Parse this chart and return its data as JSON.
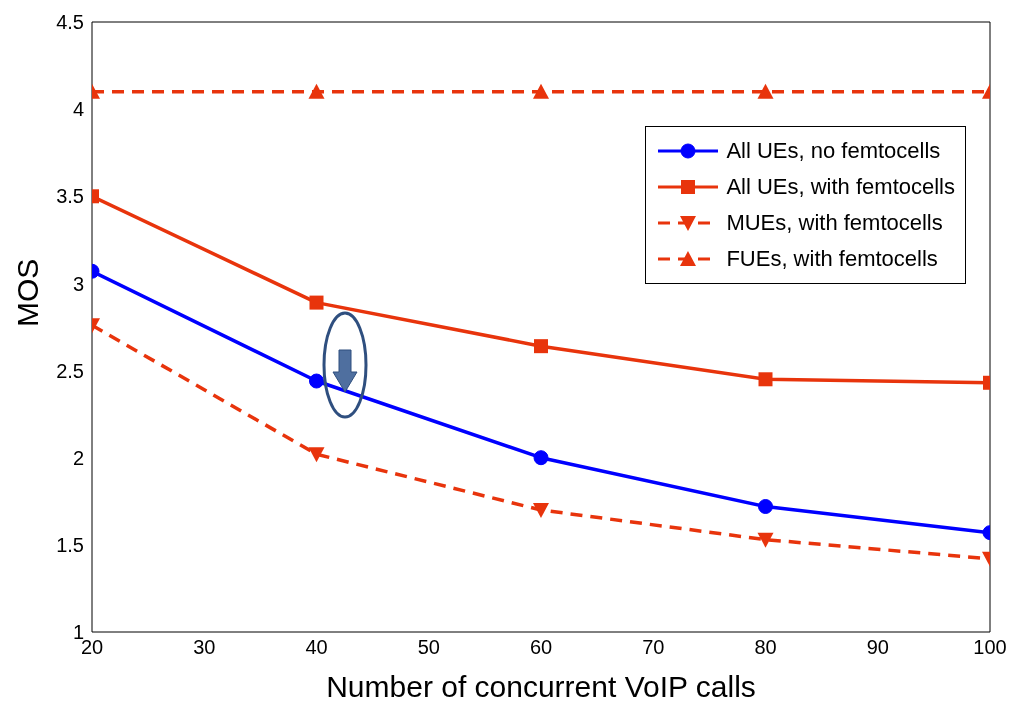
{
  "chart_data": {
    "type": "line",
    "xlabel": "Number of concurrent VoIP calls",
    "ylabel": "MOS",
    "x": [
      20,
      40,
      60,
      80,
      100
    ],
    "series": [
      {
        "name": "All UEs, no femtocells",
        "color": "#0000ff",
        "marker": "circle",
        "line_style": "solid",
        "values": [
          3.07,
          2.44,
          2.0,
          1.72,
          1.57
        ]
      },
      {
        "name": "All UEs, with femtocells",
        "color": "#e8340c",
        "marker": "square",
        "line_style": "solid",
        "values": [
          3.5,
          2.89,
          2.64,
          2.45,
          2.43
        ]
      },
      {
        "name": "MUEs, with femtocells",
        "color": "#e8340c",
        "marker": "triangle-down",
        "line_style": "dashed",
        "values": [
          2.76,
          2.02,
          1.7,
          1.53,
          1.42
        ]
      },
      {
        "name": "FUEs, with femtocells",
        "color": "#e8340c",
        "marker": "triangle",
        "line_style": "dashed",
        "values": [
          4.1,
          4.1,
          4.1,
          4.1,
          4.1
        ]
      }
    ],
    "xlim": [
      20,
      100
    ],
    "xticks": [
      20,
      30,
      40,
      50,
      60,
      70,
      80,
      90,
      100
    ],
    "ylim": [
      1,
      4.5
    ],
    "yticks": [
      1,
      1.5,
      2,
      2.5,
      3,
      3.5,
      4,
      4.5
    ],
    "legend": "top right"
  }
}
